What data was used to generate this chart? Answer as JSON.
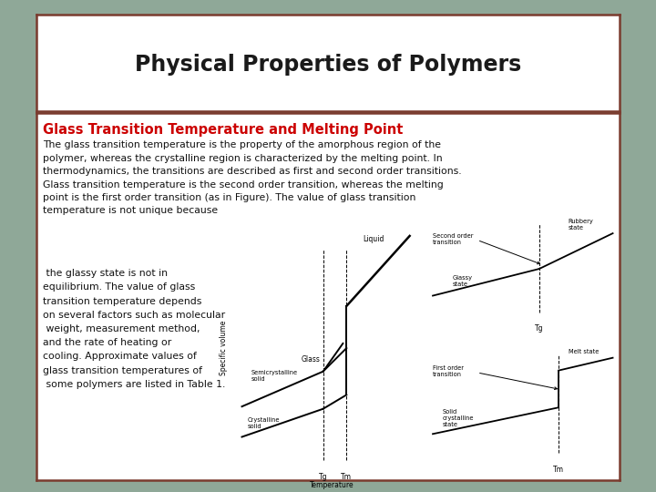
{
  "title": "Physical Properties of Polymers",
  "subtitle": "Glass Transition Temperature and Melting Point",
  "body_text1": "The glass transition temperature is the property of the amorphous region of the\npolymer, whereas the crystalline region is characterized by the melting point. In\nthermodynamics, the transitions are described as first and second order transitions.\nGlass transition temperature is the second order transition, whereas the melting\npoint is the first order transition (as in Figure). The value of glass transition\ntemperature is not unique because",
  "body_text2": " the glassy state is not in\nequilibrium. The value of glass\ntransition temperature depends\non several factors such as molecular\n weight, measurement method,\nand the rate of heating or\ncooling. Approximate values of\nglass transition temperatures of\n some polymers are listed in Table 1.",
  "bg_outer": "#8fa898",
  "bg_title_box": "#ffffff",
  "bg_content_box": "#ffffff",
  "title_border_color": "#7a3b2e",
  "content_border_color": "#7a3b2e",
  "title_color": "#1a1a1a",
  "subtitle_color": "#cc0000",
  "body_color": "#111111",
  "title_fontsize": 17,
  "subtitle_fontsize": 10.5,
  "body_fontsize": 7.8
}
